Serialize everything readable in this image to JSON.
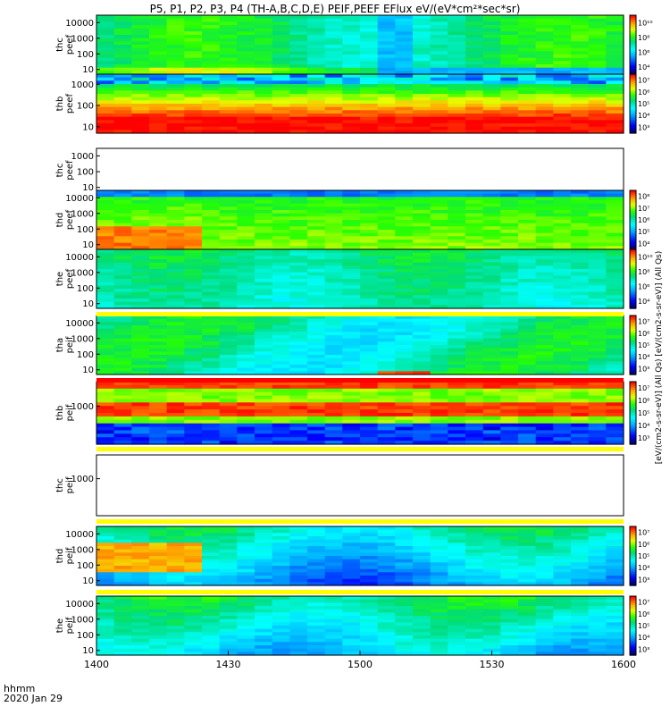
{
  "title": "P5, P1, P2, P3, P4 (TH-A,B,C,D,E) PEIF,PEEF EFlux eV/(eV*cm²*sec*sr)",
  "footer": {
    "line1": "hhmm",
    "line2": "2020 Jan 29"
  },
  "colorbar_label": "[eV/(cm2-s-sr-eV)] (All Qs) [eV/(cm2-s-sr-eV)] (All Qs)",
  "chart_data": [
    {
      "type": "heatmap",
      "probe": "thc",
      "quantity": "peef",
      "ylabel": "thc\npeef",
      "yticks": [
        "10",
        "100",
        "1000",
        "10000"
      ],
      "ylim": [
        5,
        30000
      ],
      "cbar_ticks": [
        "10⁴",
        "10⁶",
        "10⁸",
        "10¹⁰"
      ],
      "status": "filled",
      "xticks": [
        "1400",
        "1430",
        "1500",
        "1530",
        "1600"
      ]
    },
    {
      "type": "heatmap",
      "probe": "thb",
      "quantity": "peef",
      "ylabel": "thb\npeef",
      "yticks": [
        "10",
        "100",
        "1000"
      ],
      "ylim": [
        5,
        3000
      ],
      "cbar_ticks": [
        "10³",
        "10⁴",
        "10⁵",
        "10⁶",
        "10⁷"
      ],
      "status": "filled"
    },
    {
      "type": "heatmap",
      "probe": "thc",
      "quantity": "peef",
      "ylabel": "thc\npeef",
      "yticks": [
        "10",
        "100",
        "1000"
      ],
      "ylim": [
        5,
        3000
      ],
      "cbar_ticks": [],
      "status": "empty"
    },
    {
      "type": "heatmap",
      "probe": "thd",
      "quantity": "peef",
      "ylabel": "thd\npeef",
      "yticks": [
        "10",
        "100",
        "1000",
        "10000"
      ],
      "ylim": [
        5,
        30000
      ],
      "cbar_ticks": [
        "10⁴",
        "10⁵",
        "10⁶",
        "10⁷",
        "10⁸"
      ],
      "status": "filled"
    },
    {
      "type": "heatmap",
      "probe": "the",
      "quantity": "peef",
      "ylabel": "the\npeef",
      "yticks": [
        "10",
        "100",
        "1000",
        "10000"
      ],
      "ylim": [
        5,
        30000
      ],
      "cbar_ticks": [
        "10⁴",
        "10⁶",
        "10⁸",
        "10¹⁰"
      ],
      "status": "filled"
    },
    {
      "type": "heatmap",
      "probe": "tha",
      "quantity": "peif",
      "ylabel": "tha\npeif",
      "yticks": [
        "10",
        "100",
        "1000",
        "10000"
      ],
      "ylim": [
        5,
        30000
      ],
      "cbar_ticks": [
        "10³",
        "10⁴",
        "10⁵",
        "10⁶",
        "10⁷"
      ],
      "status": "filled"
    },
    {
      "type": "heatmap",
      "probe": "thb",
      "quantity": "peif",
      "ylabel": "thb\npeif",
      "yticks": [
        "1000"
      ],
      "ylim": [
        5,
        30000
      ],
      "cbar_ticks": [
        "10³",
        "10⁴",
        "10⁵",
        "10⁶",
        "10⁷"
      ],
      "status": "filled"
    },
    {
      "type": "heatmap",
      "probe": "thc",
      "quantity": "peif",
      "ylabel": "thc\npeif",
      "yticks": [
        "1000"
      ],
      "ylim": [
        5,
        30000
      ],
      "cbar_ticks": [],
      "status": "empty"
    },
    {
      "type": "heatmap",
      "probe": "thd",
      "quantity": "peif",
      "ylabel": "thd\npeif",
      "yticks": [
        "10",
        "100",
        "1000",
        "10000"
      ],
      "ylim": [
        5,
        30000
      ],
      "cbar_ticks": [
        "10³",
        "10⁴",
        "10⁵",
        "10⁶",
        "10⁷"
      ],
      "status": "filled"
    },
    {
      "type": "heatmap",
      "probe": "the",
      "quantity": "peif",
      "ylabel": "the\npeif",
      "yticks": [
        "10",
        "100",
        "1000",
        "10000"
      ],
      "ylim": [
        5,
        30000
      ],
      "cbar_ticks": [
        "10³",
        "10⁴",
        "10⁵",
        "10⁶",
        "10⁷"
      ],
      "status": "filled"
    }
  ],
  "x_axis": {
    "ticks": [
      "1400",
      "1430",
      "1500",
      "1530",
      "1600"
    ],
    "range": [
      "1400",
      "1600"
    ]
  },
  "colors": {
    "red": "#ff0000",
    "orange": "#ff8c00",
    "yellow": "#ffff00",
    "green": "#00ff00",
    "teal": "#00c8a0",
    "cyan": "#00ffff",
    "blue": "#0000ff",
    "navy": "#00007f"
  }
}
